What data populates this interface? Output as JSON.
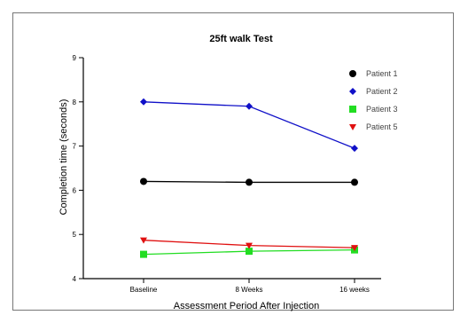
{
  "chart_data": {
    "type": "line",
    "title": "25ft walk Test",
    "xlabel": "Assessment Period After Injection",
    "ylabel": "Completion time (seconds)",
    "categories": [
      "Baseline",
      "8 Weeks",
      "16 weeks"
    ],
    "ylim": [
      4,
      9
    ],
    "yticks": [
      4,
      5,
      6,
      7,
      8,
      9
    ],
    "grid": false,
    "legend_position": "top-right",
    "series": [
      {
        "name": "Patient 1",
        "values": [
          6.2,
          6.18,
          6.18
        ],
        "color": "#000000",
        "marker": "circle"
      },
      {
        "name": "Patient 2",
        "values": [
          8.0,
          7.9,
          6.95
        ],
        "color": "#1010c8",
        "marker": "diamond"
      },
      {
        "name": "Patient 3",
        "values": [
          4.55,
          4.62,
          4.65
        ],
        "color": "#22dd22",
        "marker": "square"
      },
      {
        "name": "Patient 5",
        "values": [
          4.87,
          4.75,
          4.7
        ],
        "color": "#e01010",
        "marker": "triangle-down"
      }
    ]
  }
}
